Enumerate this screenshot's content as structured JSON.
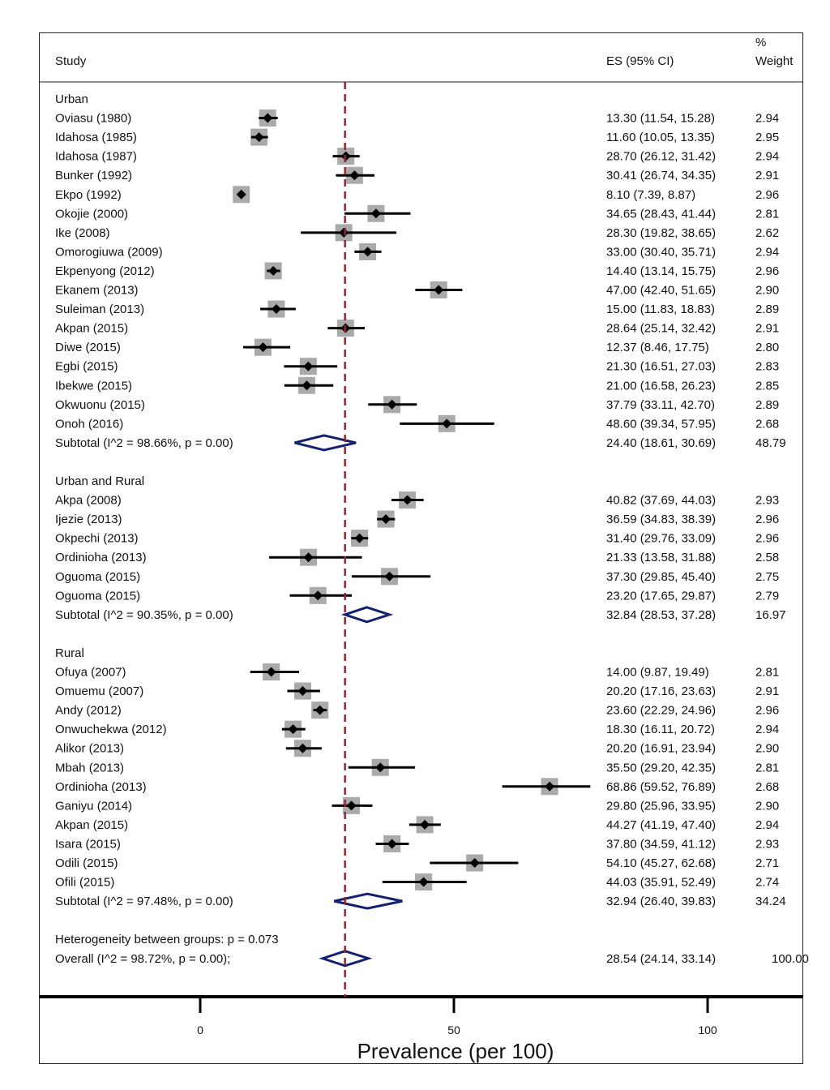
{
  "header": {
    "study_label": "Study",
    "es_label": "ES (95% CI)",
    "weight_label_top": "%",
    "weight_label_bottom": "Weight"
  },
  "colors": {
    "point": "#000000",
    "weight_box": "#aaaaaa",
    "diamond": "#14216e",
    "ref_line": "#8b2a33"
  },
  "chart_data": {
    "type": "forest",
    "xlabel": "Prevalence (per 100)",
    "xlim": [
      -32,
      118
    ],
    "xticks": [
      0,
      50,
      100
    ],
    "reference_line": 28.54,
    "groups": [
      {
        "name": "Urban",
        "studies": [
          {
            "label": "Oviasu (1980)",
            "es": 13.3,
            "lo": 11.54,
            "hi": 15.28,
            "ci_text": "13.30 (11.54, 15.28)",
            "weight": "2.94"
          },
          {
            "label": "Idahosa (1985)",
            "es": 11.6,
            "lo": 10.05,
            "hi": 13.35,
            "ci_text": "11.60 (10.05, 13.35)",
            "weight": "2.95"
          },
          {
            "label": "Idahosa (1987)",
            "es": 28.7,
            "lo": 26.12,
            "hi": 31.42,
            "ci_text": "28.70 (26.12, 31.42)",
            "weight": "2.94"
          },
          {
            "label": "Bunker (1992)",
            "es": 30.41,
            "lo": 26.74,
            "hi": 34.35,
            "ci_text": "30.41 (26.74, 34.35)",
            "weight": "2.91"
          },
          {
            "label": "Ekpo (1992)",
            "es": 8.1,
            "lo": 7.39,
            "hi": 8.87,
            "ci_text": "8.10 (7.39, 8.87)",
            "weight": "2.96"
          },
          {
            "label": "Okojie (2000)",
            "es": 34.65,
            "lo": 28.43,
            "hi": 41.44,
            "ci_text": "34.65 (28.43, 41.44)",
            "weight": "2.81"
          },
          {
            "label": "Ike (2008)",
            "es": 28.3,
            "lo": 19.82,
            "hi": 38.65,
            "ci_text": "28.30 (19.82, 38.65)",
            "weight": "2.62"
          },
          {
            "label": "Omorogiuwa (2009)",
            "es": 33.0,
            "lo": 30.4,
            "hi": 35.71,
            "ci_text": "33.00 (30.40, 35.71)",
            "weight": "2.94"
          },
          {
            "label": "Ekpenyong (2012)",
            "es": 14.4,
            "lo": 13.14,
            "hi": 15.75,
            "ci_text": "14.40 (13.14, 15.75)",
            "weight": "2.96"
          },
          {
            "label": "Ekanem (2013)",
            "es": 47.0,
            "lo": 42.4,
            "hi": 51.65,
            "ci_text": "47.00 (42.40, 51.65)",
            "weight": "2.90"
          },
          {
            "label": "Suleiman (2013)",
            "es": 15.0,
            "lo": 11.83,
            "hi": 18.83,
            "ci_text": "15.00 (11.83, 18.83)",
            "weight": "2.89"
          },
          {
            "label": "Akpan (2015)",
            "es": 28.64,
            "lo": 25.14,
            "hi": 32.42,
            "ci_text": "28.64 (25.14, 32.42)",
            "weight": "2.91"
          },
          {
            "label": "Diwe (2015)",
            "es": 12.37,
            "lo": 8.46,
            "hi": 17.75,
            "ci_text": "12.37 (8.46, 17.75)",
            "weight": "2.80"
          },
          {
            "label": "Egbi (2015)",
            "es": 21.3,
            "lo": 16.51,
            "hi": 27.03,
            "ci_text": "21.30 (16.51, 27.03)",
            "weight": "2.83"
          },
          {
            "label": "Ibekwe (2015)",
            "es": 21.0,
            "lo": 16.58,
            "hi": 26.23,
            "ci_text": "21.00 (16.58, 26.23)",
            "weight": "2.85"
          },
          {
            "label": "Okwuonu (2015)",
            "es": 37.79,
            "lo": 33.11,
            "hi": 42.7,
            "ci_text": "37.79 (33.11, 42.70)",
            "weight": "2.89"
          },
          {
            "label": "Onoh (2016)",
            "es": 48.6,
            "lo": 39.34,
            "hi": 57.95,
            "ci_text": "48.60 (39.34, 57.95)",
            "weight": "2.68"
          }
        ],
        "subtotal": {
          "label": "Subtotal  (I^2 = 98.66%, p = 0.00)",
          "es": 24.4,
          "lo": 18.61,
          "hi": 30.69,
          "ci_text": "24.40 (18.61, 30.69)",
          "weight": "48.79"
        }
      },
      {
        "name": "Urban and Rural",
        "studies": [
          {
            "label": "Akpa (2008)",
            "es": 40.82,
            "lo": 37.69,
            "hi": 44.03,
            "ci_text": "40.82 (37.69, 44.03)",
            "weight": "2.93"
          },
          {
            "label": "Ijezie (2013)",
            "es": 36.59,
            "lo": 34.83,
            "hi": 38.39,
            "ci_text": "36.59 (34.83, 38.39)",
            "weight": "2.96"
          },
          {
            "label": "Okpechi (2013)",
            "es": 31.4,
            "lo": 29.76,
            "hi": 33.09,
            "ci_text": "31.40 (29.76, 33.09)",
            "weight": "2.96"
          },
          {
            "label": "Ordinioha (2013)",
            "es": 21.33,
            "lo": 13.58,
            "hi": 31.88,
            "ci_text": "21.33 (13.58, 31.88)",
            "weight": "2.58"
          },
          {
            "label": "Oguoma (2015)",
            "es": 37.3,
            "lo": 29.85,
            "hi": 45.4,
            "ci_text": "37.30 (29.85, 45.40)",
            "weight": "2.75"
          },
          {
            "label": "Oguoma (2015)",
            "es": 23.2,
            "lo": 17.65,
            "hi": 29.87,
            "ci_text": "23.20 (17.65, 29.87)",
            "weight": "2.79"
          }
        ],
        "subtotal": {
          "label": "Subtotal  (I^2 = 90.35%, p = 0.00)",
          "es": 32.84,
          "lo": 28.53,
          "hi": 37.28,
          "ci_text": "32.84 (28.53, 37.28)",
          "weight": "16.97"
        }
      },
      {
        "name": "Rural",
        "studies": [
          {
            "label": "Ofuya (2007)",
            "es": 14.0,
            "lo": 9.87,
            "hi": 19.49,
            "ci_text": "14.00 (9.87, 19.49)",
            "weight": "2.81"
          },
          {
            "label": "Omuemu (2007)",
            "es": 20.2,
            "lo": 17.16,
            "hi": 23.63,
            "ci_text": "20.20 (17.16, 23.63)",
            "weight": "2.91"
          },
          {
            "label": "Andy (2012)",
            "es": 23.6,
            "lo": 22.29,
            "hi": 24.96,
            "ci_text": "23.60 (22.29, 24.96)",
            "weight": "2.96"
          },
          {
            "label": "Onwuchekwa (2012)",
            "es": 18.3,
            "lo": 16.11,
            "hi": 20.72,
            "ci_text": "18.30 (16.11, 20.72)",
            "weight": "2.94"
          },
          {
            "label": "Alikor (2013)",
            "es": 20.2,
            "lo": 16.91,
            "hi": 23.94,
            "ci_text": "20.20 (16.91, 23.94)",
            "weight": "2.90"
          },
          {
            "label": "Mbah (2013)",
            "es": 35.5,
            "lo": 29.2,
            "hi": 42.35,
            "ci_text": "35.50 (29.20, 42.35)",
            "weight": "2.81"
          },
          {
            "label": "Ordinioha (2013)",
            "es": 68.86,
            "lo": 59.52,
            "hi": 76.89,
            "ci_text": "68.86 (59.52, 76.89)",
            "weight": "2.68"
          },
          {
            "label": "Ganiyu (2014)",
            "es": 29.8,
            "lo": 25.96,
            "hi": 33.95,
            "ci_text": "29.80 (25.96, 33.95)",
            "weight": "2.90"
          },
          {
            "label": "Akpan (2015)",
            "es": 44.27,
            "lo": 41.19,
            "hi": 47.4,
            "ci_text": "44.27 (41.19, 47.40)",
            "weight": "2.94"
          },
          {
            "label": "Isara (2015)",
            "es": 37.8,
            "lo": 34.59,
            "hi": 41.12,
            "ci_text": "37.80 (34.59, 41.12)",
            "weight": "2.93"
          },
          {
            "label": "Odili (2015)",
            "es": 54.1,
            "lo": 45.27,
            "hi": 62.68,
            "ci_text": "54.10 (45.27, 62.68)",
            "weight": "2.71"
          },
          {
            "label": "Ofili (2015)",
            "es": 44.03,
            "lo": 35.91,
            "hi": 52.49,
            "ci_text": "44.03 (35.91, 52.49)",
            "weight": "2.74"
          }
        ],
        "subtotal": {
          "label": "Subtotal  (I^2 = 97.48%, p = 0.00)",
          "es": 32.94,
          "lo": 26.4,
          "hi": 39.83,
          "ci_text": "32.94 (26.40, 39.83)",
          "weight": "34.24"
        }
      }
    ],
    "heterogeneity_label": "Heterogeneity between groups: p = 0.073",
    "overall": {
      "label": "Overall  (I^2 = 98.72%, p = 0.00);",
      "es": 28.54,
      "lo": 24.14,
      "hi": 33.14,
      "ci_text": "28.54 (24.14, 33.14)",
      "weight": "100.00"
    }
  }
}
